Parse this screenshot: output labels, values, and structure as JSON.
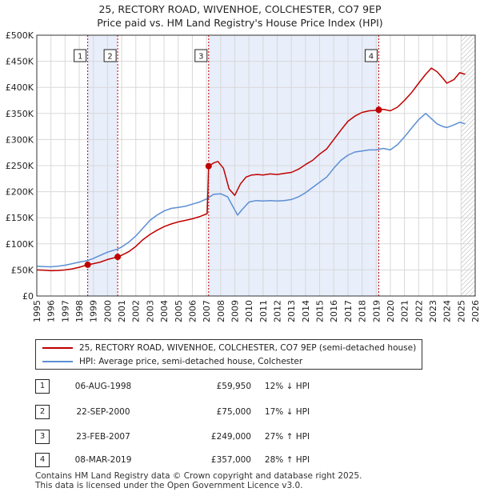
{
  "title": {
    "line1": "25, RECTORY ROAD, WIVENHOE, COLCHESTER, CO7 9EP",
    "line2": "Price paid vs. HM Land Registry's House Price Index (HPI)"
  },
  "colors": {
    "price_line": "#c00000",
    "hpi_line": "#5b8fd4",
    "shade": "#e8eefa",
    "hatch": "#aaaaaa",
    "grid": "#d8d8d8"
  },
  "chart_data": {
    "type": "line",
    "title": "Price paid vs. HM Land Registry's House Price Index (HPI)",
    "xlabel": "",
    "ylabel": "",
    "xlim": [
      1995,
      2026
    ],
    "ylim": [
      0,
      500000
    ],
    "x_ticks": [
      "1995",
      "1996",
      "1997",
      "1998",
      "1999",
      "2000",
      "2001",
      "2002",
      "2003",
      "2004",
      "2005",
      "2006",
      "2007",
      "2008",
      "2009",
      "2010",
      "2011",
      "2012",
      "2013",
      "2014",
      "2015",
      "2016",
      "2017",
      "2018",
      "2019",
      "2020",
      "2021",
      "2022",
      "2023",
      "2024",
      "2025",
      "2026"
    ],
    "y_ticks": [
      {
        "value": 0,
        "label": "£0"
      },
      {
        "value": 50000,
        "label": "£50K"
      },
      {
        "value": 100000,
        "label": "£100K"
      },
      {
        "value": 150000,
        "label": "£150K"
      },
      {
        "value": 200000,
        "label": "£200K"
      },
      {
        "value": 250000,
        "label": "£250K"
      },
      {
        "value": 300000,
        "label": "£300K"
      },
      {
        "value": 350000,
        "label": "£350K"
      },
      {
        "value": 400000,
        "label": "£400K"
      },
      {
        "value": 450000,
        "label": "£450K"
      },
      {
        "value": 500000,
        "label": "£500K"
      }
    ],
    "grid": true,
    "shaded_periods": [
      {
        "from": 1998.6,
        "to": 2000.72
      },
      {
        "from": 2007.15,
        "to": 2019.18
      }
    ],
    "hatched_from": 2025.0,
    "series": [
      {
        "name": "25, RECTORY ROAD, WIVENHOE, COLCHESTER, CO7 9EP (semi-detached house)",
        "color": "#c00000",
        "x": [
          1995.0,
          1995.5,
          1996.0,
          1996.5,
          1997.0,
          1997.5,
          1998.0,
          1998.6,
          1999.0,
          1999.5,
          2000.0,
          2000.72,
          2001.0,
          2001.5,
          2002.0,
          2002.5,
          2003.0,
          2003.5,
          2004.0,
          2004.5,
          2005.0,
          2005.5,
          2006.0,
          2006.5,
          2007.05,
          2007.15,
          2007.5,
          2007.8,
          2008.2,
          2008.6,
          2009.0,
          2009.4,
          2009.8,
          2010.2,
          2010.6,
          2011.0,
          2011.5,
          2012.0,
          2012.5,
          2013.0,
          2013.5,
          2014.0,
          2014.5,
          2015.0,
          2015.5,
          2016.0,
          2016.5,
          2017.0,
          2017.5,
          2018.0,
          2018.5,
          2019.0,
          2019.18,
          2019.5,
          2020.0,
          2020.5,
          2021.0,
          2021.5,
          2022.0,
          2022.5,
          2022.9,
          2023.3,
          2023.7,
          2024.0,
          2024.5,
          2024.9,
          2025.3
        ],
        "values": [
          50000,
          49500,
          48500,
          49000,
          50000,
          52000,
          55000,
          59950,
          62000,
          65000,
          70000,
          75000,
          78000,
          85000,
          95000,
          108000,
          118000,
          126000,
          133000,
          138000,
          142000,
          145000,
          148000,
          152000,
          158000,
          249000,
          255000,
          258000,
          245000,
          205000,
          193000,
          215000,
          228000,
          232000,
          233000,
          232000,
          234000,
          233000,
          235000,
          237000,
          243000,
          252000,
          260000,
          272000,
          282000,
          300000,
          318000,
          335000,
          345000,
          352000,
          355000,
          356000,
          357000,
          358000,
          355000,
          362000,
          375000,
          390000,
          408000,
          425000,
          437000,
          430000,
          418000,
          408000,
          415000,
          428000,
          425000
        ]
      },
      {
        "name": "HPI: Average price, semi-detached house, Colchester",
        "color": "#5b8fd4",
        "x": [
          1995.0,
          1995.5,
          1996.0,
          1996.5,
          1997.0,
          1997.5,
          1998.0,
          1998.6,
          1999.0,
          1999.5,
          2000.0,
          2000.72,
          2001.0,
          2001.5,
          2002.0,
          2002.5,
          2003.0,
          2003.5,
          2004.0,
          2004.5,
          2005.0,
          2005.5,
          2006.0,
          2006.5,
          2007.0,
          2007.5,
          2008.0,
          2008.5,
          2008.9,
          2009.2,
          2009.5,
          2010.0,
          2010.5,
          2011.0,
          2011.5,
          2012.0,
          2012.5,
          2013.0,
          2013.5,
          2014.0,
          2014.5,
          2015.0,
          2015.5,
          2016.0,
          2016.5,
          2017.0,
          2017.5,
          2018.0,
          2018.5,
          2019.0,
          2019.5,
          2020.0,
          2020.5,
          2021.0,
          2021.5,
          2022.0,
          2022.5,
          2022.9,
          2023.3,
          2023.7,
          2024.0,
          2024.5,
          2024.9,
          2025.3
        ],
        "values": [
          57000,
          56500,
          56000,
          57000,
          59000,
          62000,
          65000,
          68000,
          72000,
          78000,
          84000,
          90000,
          94000,
          103000,
          115000,
          130000,
          145000,
          155000,
          163000,
          168000,
          170000,
          172000,
          176000,
          180000,
          186000,
          195000,
          196000,
          190000,
          170000,
          155000,
          165000,
          180000,
          183000,
          182000,
          183000,
          182000,
          183000,
          185000,
          190000,
          198000,
          208000,
          218000,
          228000,
          245000,
          260000,
          270000,
          276000,
          278000,
          280000,
          280000,
          283000,
          280000,
          290000,
          305000,
          322000,
          338000,
          350000,
          340000,
          330000,
          325000,
          323000,
          328000,
          333000,
          330000
        ]
      }
    ],
    "markers": [
      {
        "label": "1",
        "x": 1998.6,
        "value": 59950
      },
      {
        "label": "2",
        "x": 2000.72,
        "value": 75000
      },
      {
        "label": "3",
        "x": 2007.15,
        "value": 249000
      },
      {
        "label": "4",
        "x": 2019.18,
        "value": 357000
      }
    ]
  },
  "legend": {
    "price_label": "25, RECTORY ROAD, WIVENHOE, COLCHESTER, CO7 9EP (semi-detached house)",
    "hpi_label": "HPI: Average price, semi-detached house, Colchester"
  },
  "transactions": [
    {
      "num": "1",
      "date": "06-AUG-1998",
      "price": "£59,950",
      "hpi": "12% ↓ HPI"
    },
    {
      "num": "2",
      "date": "22-SEP-2000",
      "price": "£75,000",
      "hpi": "17% ↓ HPI"
    },
    {
      "num": "3",
      "date": "23-FEB-2007",
      "price": "£249,000",
      "hpi": "27% ↑ HPI"
    },
    {
      "num": "4",
      "date": "08-MAR-2019",
      "price": "£357,000",
      "hpi": "28% ↑ HPI"
    }
  ],
  "footer": {
    "line1": "Contains HM Land Registry data © Crown copyright and database right 2025.",
    "line2": "This data is licensed under the Open Government Licence v3.0."
  }
}
